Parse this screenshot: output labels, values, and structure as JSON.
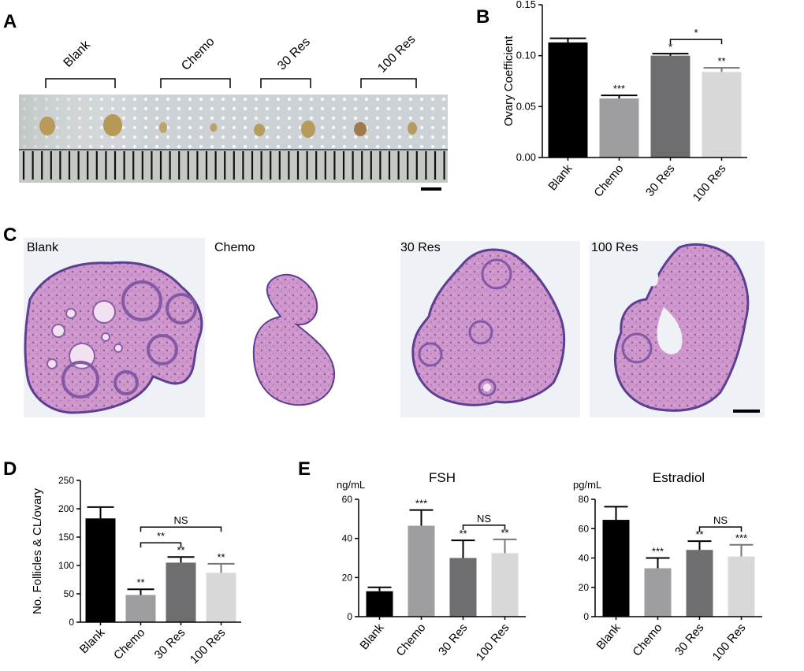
{
  "panels": {
    "A": "A",
    "B": "B",
    "C": "C",
    "D": "D",
    "E": "E"
  },
  "photo_a": {
    "groups": [
      "Blank",
      "Chemo",
      "30 Res",
      "100 Res"
    ]
  },
  "histology": {
    "labels": [
      "Blank",
      "Chemo",
      "30 Res",
      "100 Res"
    ]
  },
  "colors": {
    "blank": "#000000",
    "chemo": "#9e9ea0",
    "res30": "#6e6e70",
    "res100": "#d8d8d8",
    "tissue": "#c98cc6",
    "tissue_dark": "#6a4f9e",
    "bg_pale": "#eef1f6"
  },
  "chart_data": [
    {
      "id": "B",
      "type": "bar",
      "title": "",
      "ylabel": "Ovary Coefficient",
      "unit": "",
      "categories": [
        "Blank",
        "Chemo",
        "30 Res",
        "100 Res"
      ],
      "values": [
        0.113,
        0.058,
        0.1,
        0.084
      ],
      "errors": [
        0.004,
        0.003,
        0.002,
        0.004
      ],
      "ylim": [
        0,
        0.15
      ],
      "yticks": [
        0.0,
        0.05,
        0.1,
        0.15
      ],
      "ytick_labels": [
        "0.00",
        "0.05",
        "0.10",
        "0.15"
      ],
      "sig": [
        "",
        "***",
        "*",
        "**"
      ],
      "brackets": [
        {
          "from": 2,
          "to": 3,
          "label": "*"
        }
      ]
    },
    {
      "id": "D",
      "type": "bar",
      "title": "",
      "ylabel": "No. Follicles & CL/ovary",
      "unit": "",
      "categories": [
        "Blank",
        "Chemo",
        "30 Res",
        "100 Res"
      ],
      "values": [
        183,
        48,
        105,
        87
      ],
      "errors": [
        20,
        10,
        10,
        16
      ],
      "ylim": [
        0,
        250
      ],
      "yticks": [
        0,
        50,
        100,
        150,
        200,
        250
      ],
      "ytick_labels": [
        "0",
        "50",
        "100",
        "150",
        "200",
        "250"
      ],
      "sig": [
        "",
        "**",
        "**",
        "**"
      ],
      "brackets": [
        {
          "from": 1,
          "to": 3,
          "label": "NS",
          "level": 2
        },
        {
          "from": 1,
          "to": 2,
          "label": "**",
          "level": 1
        }
      ]
    },
    {
      "id": "E1",
      "type": "bar",
      "title": "FSH",
      "ylabel": "",
      "unit": "ng/mL",
      "categories": [
        "Blank",
        "Chemo",
        "30 Res",
        "100 Res"
      ],
      "values": [
        13,
        46.5,
        30,
        32.5
      ],
      "errors": [
        2,
        8,
        9,
        7
      ],
      "ylim": [
        0,
        60
      ],
      "yticks": [
        0,
        20,
        40,
        60
      ],
      "ytick_labels": [
        "0",
        "20",
        "40",
        "60"
      ],
      "sig": [
        "",
        "***",
        "**",
        "**"
      ],
      "brackets": [
        {
          "from": 2,
          "to": 3,
          "label": "NS",
          "level": 1
        }
      ]
    },
    {
      "id": "E2",
      "type": "bar",
      "title": "Estradiol",
      "ylabel": "",
      "unit": "pg/mL",
      "categories": [
        "Blank",
        "Chemo",
        "30 Res",
        "100 Res"
      ],
      "values": [
        66,
        33,
        45.5,
        41
      ],
      "errors": [
        9,
        7,
        6,
        8
      ],
      "ylim": [
        0,
        80
      ],
      "yticks": [
        0,
        20,
        40,
        60,
        80
      ],
      "ytick_labels": [
        "0",
        "20",
        "40",
        "60",
        "80"
      ],
      "sig": [
        "",
        "***",
        "**",
        "***"
      ],
      "brackets": [
        {
          "from": 2,
          "to": 3,
          "label": "NS",
          "level": 1
        }
      ]
    }
  ]
}
